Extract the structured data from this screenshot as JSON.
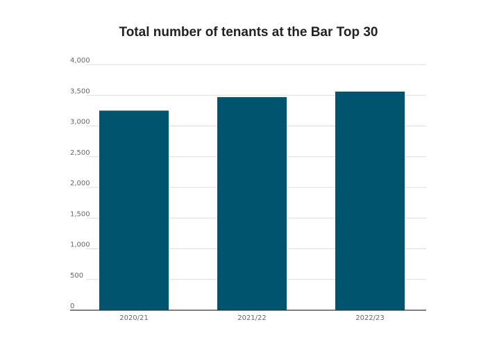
{
  "chart_data": {
    "type": "bar",
    "title": "Total number of tenants at the Bar Top 30",
    "xlabel": "",
    "ylabel": "",
    "categories": [
      "2020/21",
      "2021/22",
      "2022/23"
    ],
    "values": [
      3250,
      3470,
      3560
    ],
    "ylim": [
      0,
      4000
    ],
    "yticks": [
      0,
      500,
      1000,
      1500,
      2000,
      2500,
      3000,
      3500,
      4000
    ],
    "ytick_labels": [
      "0",
      "500",
      "1,000",
      "1,500",
      "2,000",
      "2,500",
      "3,000",
      "3,500",
      "4,000"
    ],
    "grid": true,
    "legend": "none",
    "bar_color": "#00546e"
  }
}
